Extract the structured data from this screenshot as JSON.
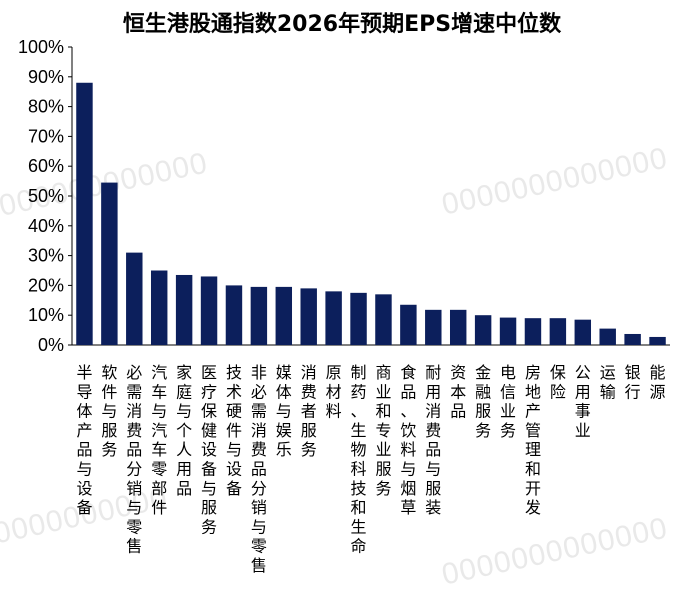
{
  "chart_data": {
    "type": "bar",
    "title": "恒生港股通指数2026年预期EPS增速中位数",
    "xlabel": "",
    "ylabel": "",
    "ylim": [
      0,
      100
    ],
    "y_ticks": [
      "0%",
      "10%",
      "20%",
      "30%",
      "40%",
      "50%",
      "60%",
      "70%",
      "80%",
      "90%",
      "100%"
    ],
    "grid": false,
    "bar_color": "#0c1f5c",
    "categories": [
      "半导体产品与设备",
      "软件与服务",
      "必需消费品分销与零售",
      "汽车与汽车零部件",
      "家庭与个人用品",
      "医疗保健设备与服务",
      "技术硬件与设备",
      "非必需消费品分销与零售",
      "媒体与娱乐",
      "消费者服务",
      "原材料",
      "制药、生物科技和生命",
      "商业和专业服务",
      "食品、饮料与烟草",
      "耐用消费品与服装",
      "资本品",
      "金融服务",
      "电信业务",
      "房地产管理和开发",
      "保险",
      "公用事业",
      "运输",
      "银行",
      "能源"
    ],
    "values": [
      88.0,
      54.5,
      31.0,
      25.0,
      23.5,
      23.0,
      20.0,
      19.5,
      19.5,
      19.0,
      18.0,
      17.5,
      17.0,
      13.5,
      11.8,
      11.8,
      10.0,
      9.2,
      9.0,
      9.0,
      8.5,
      5.5,
      3.7,
      2.7
    ]
  },
  "watermarks": [
    "0000000000000",
    "0000000000000",
    "0000000000000",
    "0000000000000"
  ]
}
